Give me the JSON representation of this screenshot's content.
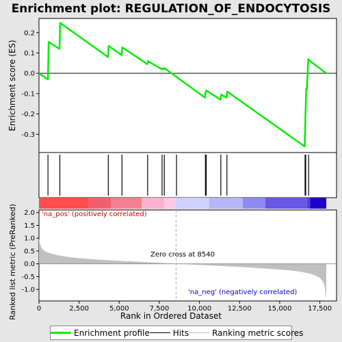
{
  "chart_data": {
    "type": "line",
    "title": "Enrichment plot: REGULATION_OF_ENDOCYTOSIS",
    "top_panel": {
      "ylabel": "Enrichment score (ES)",
      "ylim": [
        -0.39,
        0.27
      ],
      "yticks": [
        -0.3,
        -0.2,
        -0.1,
        0.0,
        0.1,
        0.2
      ],
      "ytick_labels": [
        "-0.3",
        "-0.2",
        "-0.1",
        "0.0",
        "0.1",
        "0.2"
      ],
      "series_color": "#00ee00",
      "es_curve": {
        "x": [
          0,
          560,
          600,
          1280,
          1320,
          4300,
          4340,
          5150,
          5190,
          6750,
          6790,
          7650,
          7700,
          7790,
          7830,
          10350,
          10390,
          10440,
          11310,
          11350,
          11690,
          11730,
          16560,
          16600,
          16650,
          16690,
          16780,
          16820,
          17900
        ],
        "y": [
          0.0,
          -0.03,
          0.155,
          0.12,
          0.248,
          0.08,
          0.135,
          0.09,
          0.128,
          0.045,
          0.06,
          0.02,
          0.025,
          0.02,
          0.025,
          -0.12,
          -0.09,
          -0.085,
          -0.13,
          -0.105,
          -0.12,
          -0.09,
          -0.36,
          -0.22,
          -0.075,
          -0.08,
          0.07,
          0.065,
          0.0
        ]
      }
    },
    "hits": [
      560,
      1300,
      4320,
      5170,
      6770,
      7670,
      7810,
      8570,
      10370,
      10420,
      11330,
      11710,
      16580,
      16620,
      16800
    ],
    "colorbar": {
      "segments": [
        {
          "x0": 0,
          "x1": 3100,
          "color": "#ff4c4c"
        },
        {
          "x0": 3100,
          "x1": 4500,
          "color": "#f26070"
        },
        {
          "x0": 4500,
          "x1": 6400,
          "color": "#f58090"
        },
        {
          "x0": 6400,
          "x1": 7800,
          "color": "#f8b2d0"
        },
        {
          "x0": 7800,
          "x1": 8540,
          "color": "#fbc8e6"
        },
        {
          "x0": 8540,
          "x1": 10600,
          "color": "#d0d0ff"
        },
        {
          "x0": 10600,
          "x1": 12700,
          "color": "#b6b6f6"
        },
        {
          "x0": 12700,
          "x1": 14100,
          "color": "#8c8cf0"
        },
        {
          "x0": 14100,
          "x1": 16700,
          "color": "#6a58e8"
        },
        {
          "x0": 16700,
          "x1": 16900,
          "color": "#5540e0"
        },
        {
          "x0": 16900,
          "x1": 17900,
          "color": "#2200cc"
        }
      ]
    },
    "bottom_panel": {
      "ylabel": "Ranked list metric (PreRanked)",
      "xlabel": "Rank in Ordered Dataset",
      "ylim": [
        -1.45,
        2.1
      ],
      "yticks": [
        -1.0,
        -0.5,
        0.0,
        0.5,
        1.0,
        1.5,
        2.0
      ],
      "ytick_labels": [
        "-1.0",
        "-0.5",
        "0.0",
        "0.5",
        "1.0",
        "1.5",
        "2.0"
      ],
      "metric_curve": {
        "x": [
          0,
          50,
          150,
          300,
          500,
          800,
          1200,
          1800,
          2500,
          3500,
          4500,
          5500,
          6500,
          7500,
          8540,
          9500,
          10500,
          11500,
          12500,
          13500,
          14500,
          15500,
          16200,
          16800,
          17200,
          17500,
          17700,
          17800,
          17850,
          17900
        ],
        "y": [
          1.0,
          0.8,
          0.62,
          0.52,
          0.45,
          0.39,
          0.33,
          0.27,
          0.22,
          0.17,
          0.13,
          0.1,
          0.07,
          0.04,
          0.0,
          -0.03,
          -0.06,
          -0.09,
          -0.12,
          -0.16,
          -0.2,
          -0.25,
          -0.3,
          -0.37,
          -0.45,
          -0.55,
          -0.7,
          -0.85,
          -1.1,
          -1.38
        ]
      },
      "zero_cross": 8540,
      "zero_cross_label": "Zero cross at 8540",
      "pos_label": "'na_pos' (positively correlated)",
      "neg_label": "'na_neg' (negatively correlated)"
    },
    "x_axis": {
      "xlim": [
        0,
        18540
      ],
      "xticks": [
        0,
        2500,
        5000,
        7500,
        10000,
        12500,
        15000,
        17500
      ],
      "xtick_labels": [
        "0",
        "2,500",
        "5,000",
        "7,500",
        "10,000",
        "12,500",
        "15,000",
        "17,500"
      ]
    },
    "legend": [
      {
        "label": "Enrichment profile",
        "color": "#00ee00"
      },
      {
        "label": "Hits",
        "color": "#000000"
      },
      {
        "label": "Ranking metric scores",
        "color": "#c0c0c0"
      }
    ]
  }
}
